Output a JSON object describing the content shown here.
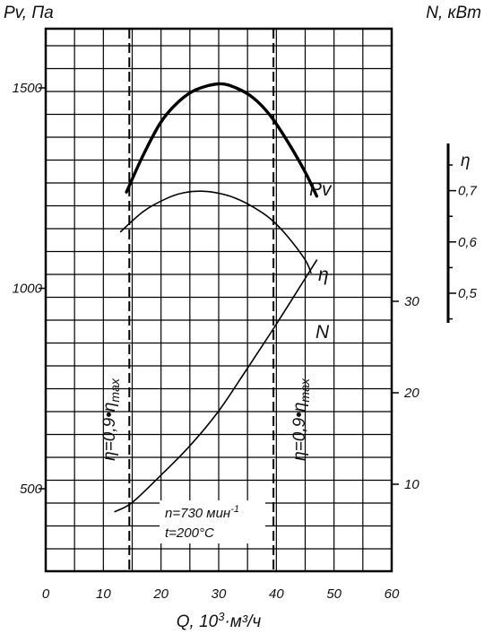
{
  "chart_data": {
    "type": "line",
    "axes": {
      "left_title": "Pv, Па",
      "right_title": "N, кВт",
      "x_title_prefix": "Q, 10",
      "x_title_exp": "3",
      "x_title_suffix": "·м³/ч",
      "eta_title": "η"
    },
    "x": {
      "range": [
        0,
        60
      ],
      "ticks": [
        "0",
        "10",
        "20",
        "30",
        "40",
        "50",
        "60"
      ]
    },
    "pv_axis": {
      "range": [
        0,
        1500
      ],
      "ticks": [
        "500",
        "1000",
        "1500"
      ],
      "tick_values": [
        500,
        1000,
        1500
      ]
    },
    "n_axis": {
      "ticks": [
        "10",
        "20",
        "30"
      ],
      "tick_values": [
        10,
        20,
        30
      ]
    },
    "eta_axis": {
      "ticks": [
        "0,7",
        "0,6",
        "0,5"
      ],
      "tick_values": [
        0.7,
        0.6,
        0.5
      ]
    },
    "grid": true,
    "series": [
      {
        "name": "Pv",
        "axis": "pv",
        "points": [
          [
            14,
            1240
          ],
          [
            17,
            1335
          ],
          [
            20,
            1415
          ],
          [
            23,
            1465
          ],
          [
            26,
            1495
          ],
          [
            30,
            1510
          ],
          [
            33,
            1500
          ],
          [
            36,
            1475
          ],
          [
            39,
            1430
          ],
          [
            42,
            1365
          ],
          [
            45,
            1290
          ],
          [
            47,
            1230
          ]
        ]
      },
      {
        "name": "η",
        "axis": "eta",
        "points": [
          [
            13,
            0.62
          ],
          [
            17,
            0.66
          ],
          [
            21,
            0.685
          ],
          [
            24,
            0.696
          ],
          [
            27,
            0.699
          ],
          [
            30,
            0.695
          ],
          [
            33,
            0.685
          ],
          [
            36,
            0.668
          ],
          [
            39,
            0.645
          ],
          [
            42,
            0.61
          ],
          [
            45,
            0.565
          ],
          [
            46,
            0.54
          ]
        ]
      },
      {
        "name": "N",
        "axis": "n",
        "points": [
          [
            12,
            7
          ],
          [
            15,
            8
          ],
          [
            20,
            11
          ],
          [
            25,
            14.2
          ],
          [
            30,
            18
          ],
          [
            35,
            22.7
          ],
          [
            40,
            27.5
          ],
          [
            45,
            32.5
          ],
          [
            47,
            34.5
          ]
        ]
      }
    ],
    "eta_limit_lines": {
      "x": [
        14.5,
        39.5
      ],
      "label": "η=0,9•η",
      "label_sub": "max"
    },
    "annotations": {
      "speed": "n=730 мин",
      "speed_exp": "-1",
      "temperature": "t=200°C"
    }
  }
}
